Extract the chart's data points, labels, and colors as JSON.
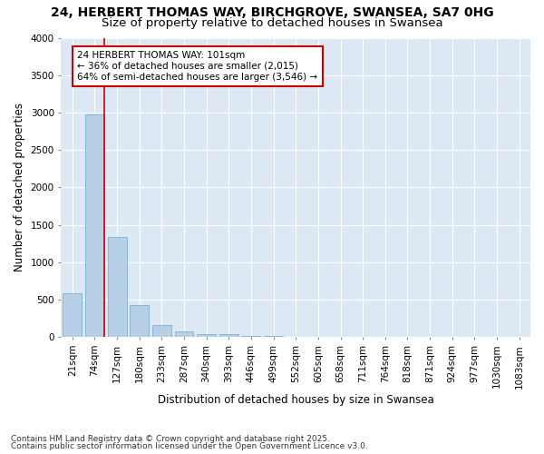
{
  "title_line1": "24, HERBERT THOMAS WAY, BIRCHGROVE, SWANSEA, SA7 0HG",
  "title_line2": "Size of property relative to detached houses in Swansea",
  "xlabel": "Distribution of detached houses by size in Swansea",
  "ylabel": "Number of detached properties",
  "categories": [
    "21sqm",
    "74sqm",
    "127sqm",
    "180sqm",
    "233sqm",
    "287sqm",
    "340sqm",
    "393sqm",
    "446sqm",
    "499sqm",
    "552sqm",
    "605sqm",
    "658sqm",
    "711sqm",
    "764sqm",
    "818sqm",
    "871sqm",
    "924sqm",
    "977sqm",
    "1030sqm",
    "1083sqm"
  ],
  "values": [
    590,
    2970,
    1340,
    430,
    160,
    80,
    45,
    35,
    20,
    10,
    0,
    0,
    0,
    0,
    0,
    0,
    0,
    0,
    0,
    0,
    0
  ],
  "bar_color": "#b8cfe8",
  "bar_edge_color": "#7aafd4",
  "vline_color": "#cc0000",
  "annotation_text": "24 HERBERT THOMAS WAY: 101sqm\n← 36% of detached houses are smaller (2,015)\n64% of semi-detached houses are larger (3,546) →",
  "annotation_box_color": "#cc0000",
  "background_color": "#dde8f5",
  "ylim": [
    0,
    4000
  ],
  "yticks": [
    0,
    500,
    1000,
    1500,
    2000,
    2500,
    3000,
    3500,
    4000
  ],
  "footer_line1": "Contains HM Land Registry data © Crown copyright and database right 2025.",
  "footer_line2": "Contains public sector information licensed under the Open Government Licence v3.0.",
  "title_fontsize": 10,
  "subtitle_fontsize": 9.5,
  "axis_label_fontsize": 8.5,
  "tick_fontsize": 7.5,
  "annotation_fontsize": 7.5,
  "footer_fontsize": 6.5
}
